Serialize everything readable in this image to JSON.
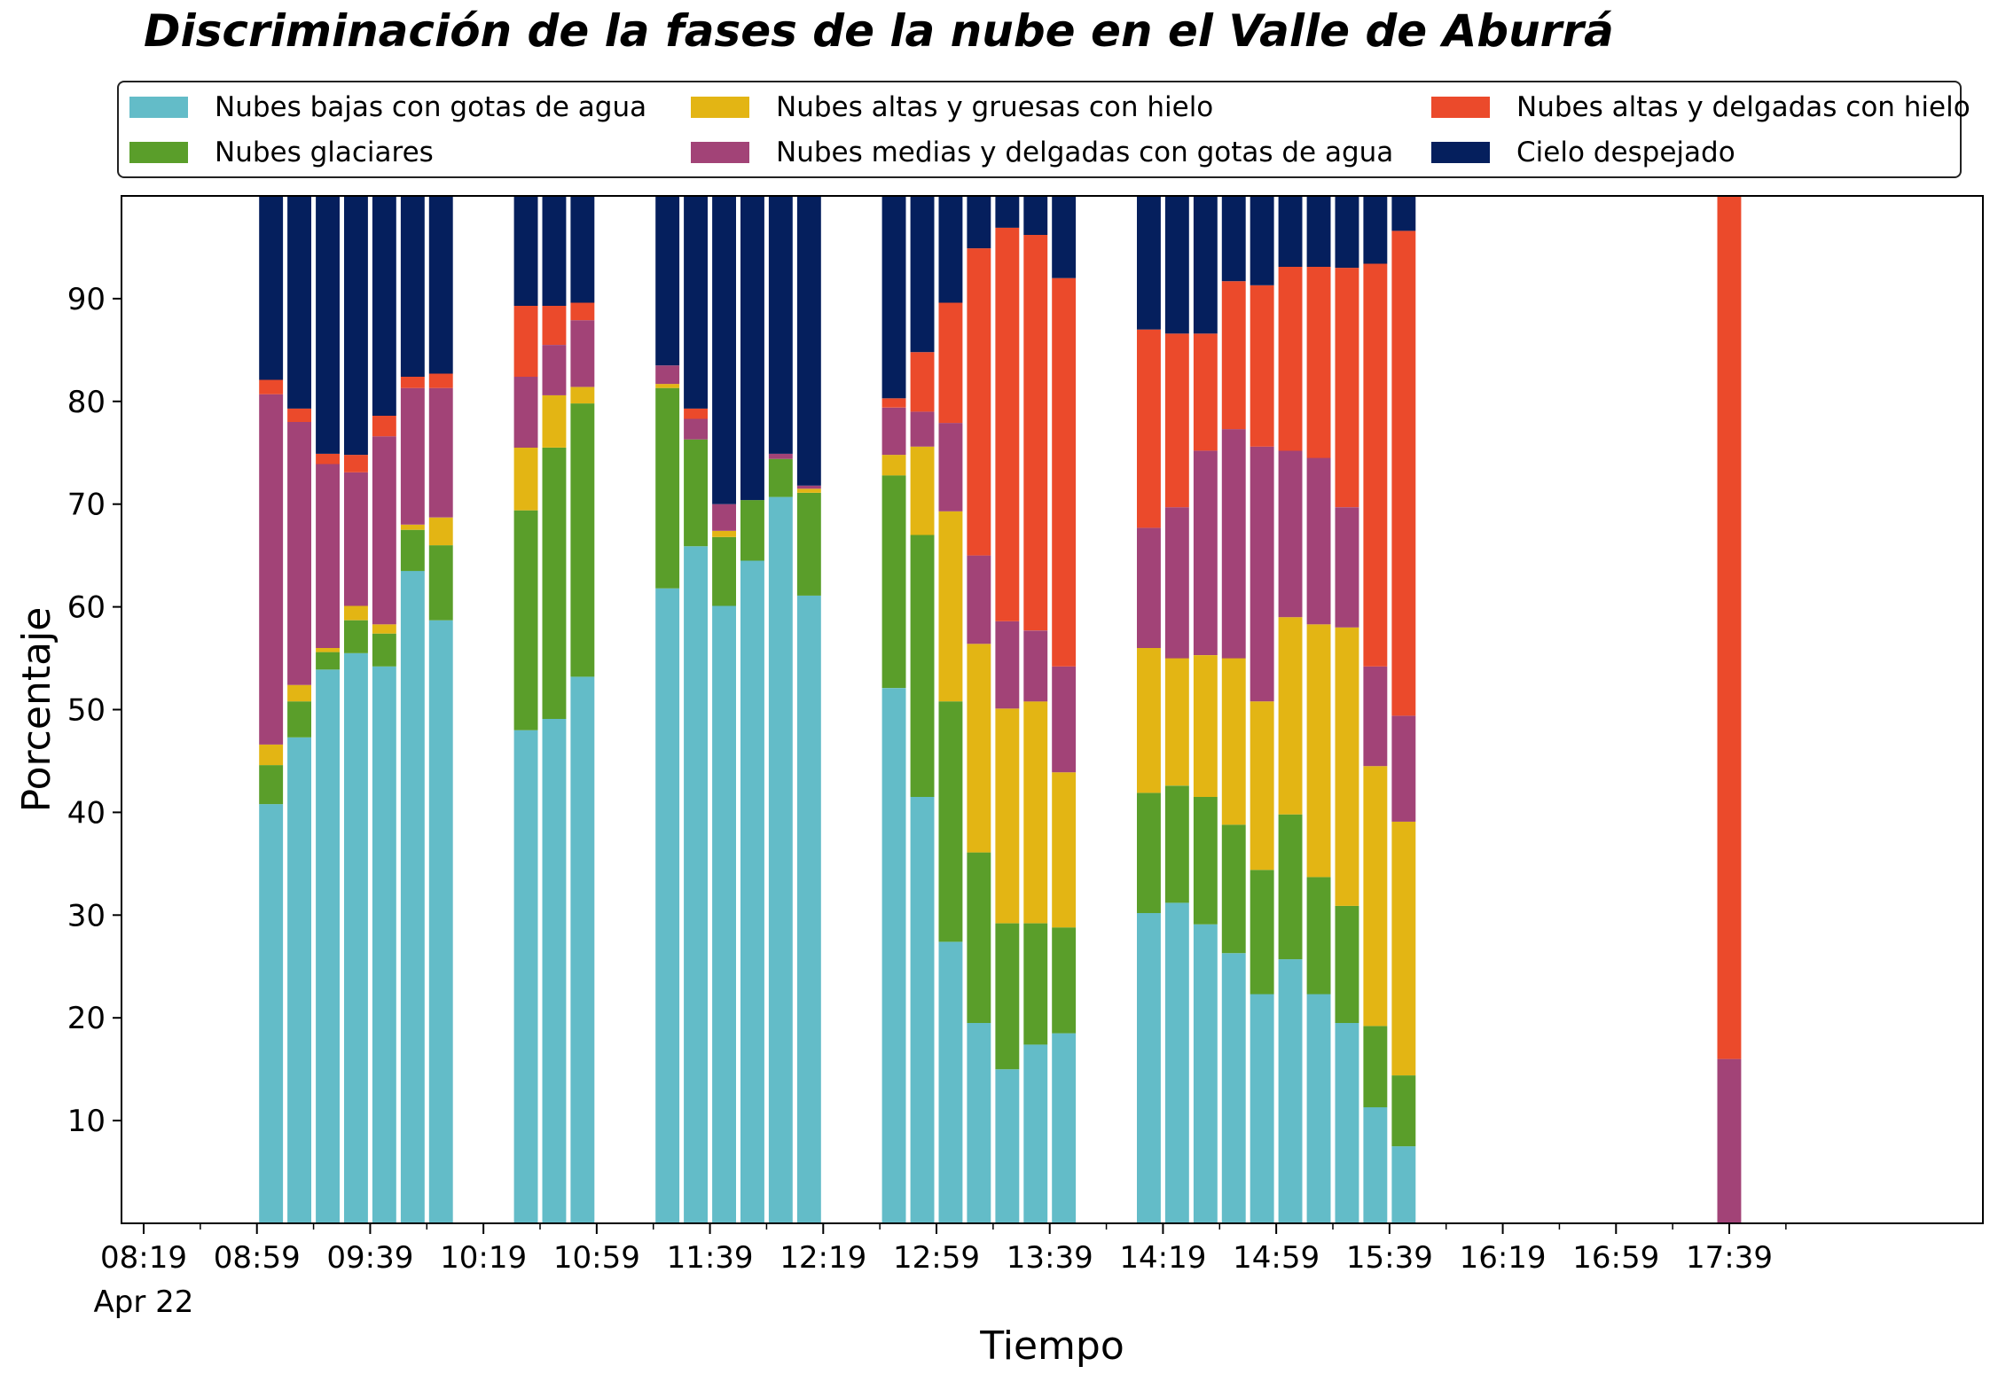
{
  "chart_data": {
    "type": "bar",
    "stacked": true,
    "title": "Discriminación de la fases de la nube en el Valle de Aburrá",
    "xlabel": "Tiempo",
    "ylabel": "Porcentaje",
    "ylim": [
      0,
      100
    ],
    "y_ticks": [
      "10",
      "20",
      "30",
      "40",
      "50",
      "60",
      "70",
      "80",
      "90"
    ],
    "x_date_label": "Apr 22",
    "x_ticks": [
      "08:19",
      "08:59",
      "09:39",
      "10:19",
      "10:59",
      "11:39",
      "12:19",
      "12:59",
      "13:39",
      "14:19",
      "14:59",
      "15:39",
      "16:19",
      "16:59",
      "17:39"
    ],
    "legend_position": "top",
    "grid": false,
    "series": [
      {
        "name": "Nubes bajas con gotas de agua",
        "color": "#63BCC8"
      },
      {
        "name": "Nubes glaciares",
        "color": "#5A9E2A"
      },
      {
        "name": "Nubes altas y gruesas con hielo",
        "color": "#E3B514"
      },
      {
        "name": "Nubes medias y delgadas con gotas de agua",
        "color": "#A24377"
      },
      {
        "name": "Nubes altas y delgadas con hielo",
        "color": "#EB4A2B"
      },
      {
        "name": "Cielo despejado",
        "color": "#051F5D"
      }
    ],
    "bars": [
      {
        "time": "09:04",
        "values": [
          40.8,
          3.8,
          2.0,
          34.1,
          1.4,
          17.9
        ]
      },
      {
        "time": "09:14",
        "values": [
          47.3,
          3.5,
          1.6,
          25.6,
          1.3,
          20.7
        ]
      },
      {
        "time": "09:24",
        "values": [
          53.9,
          1.7,
          0.4,
          17.9,
          1.0,
          25.1
        ]
      },
      {
        "time": "09:34",
        "values": [
          55.5,
          3.2,
          1.4,
          13.0,
          1.7,
          25.2
        ]
      },
      {
        "time": "09:44",
        "values": [
          54.2,
          3.2,
          0.9,
          18.3,
          2.0,
          21.4
        ]
      },
      {
        "time": "09:54",
        "values": [
          63.5,
          4.0,
          0.5,
          13.3,
          1.1,
          17.6
        ]
      },
      {
        "time": "10:04",
        "values": [
          58.7,
          7.3,
          2.7,
          12.6,
          1.4,
          17.3
        ]
      },
      {
        "time": "10:34",
        "values": [
          48.0,
          21.4,
          6.1,
          6.9,
          6.9,
          10.7
        ]
      },
      {
        "time": "10:44",
        "values": [
          49.1,
          26.4,
          5.1,
          4.9,
          3.8,
          10.7
        ]
      },
      {
        "time": "10:54",
        "values": [
          53.2,
          26.6,
          1.6,
          6.5,
          1.7,
          10.4
        ]
      },
      {
        "time": "11:24",
        "values": [
          61.8,
          19.5,
          0.4,
          1.8,
          0.0,
          16.5
        ]
      },
      {
        "time": "11:34",
        "values": [
          65.9,
          10.4,
          0.0,
          2.0,
          1.0,
          20.7
        ]
      },
      {
        "time": "11:44",
        "values": [
          60.1,
          6.7,
          0.6,
          2.6,
          0.0,
          30.0
        ]
      },
      {
        "time": "11:54",
        "values": [
          64.5,
          5.9,
          0.0,
          0.0,
          0.0,
          29.6
        ]
      },
      {
        "time": "12:04",
        "values": [
          70.7,
          3.7,
          0.0,
          0.5,
          0.0,
          25.1
        ]
      },
      {
        "time": "12:14",
        "values": [
          61.1,
          10.0,
          0.4,
          0.3,
          0.0,
          28.2
        ]
      },
      {
        "time": "12:44",
        "values": [
          52.1,
          20.7,
          2.0,
          4.6,
          0.9,
          19.7
        ]
      },
      {
        "time": "12:54",
        "values": [
          41.5,
          25.5,
          8.6,
          3.4,
          5.8,
          15.2
        ]
      },
      {
        "time": "13:04",
        "values": [
          27.4,
          23.4,
          18.5,
          8.6,
          11.7,
          10.4
        ]
      },
      {
        "time": "13:14",
        "values": [
          19.5,
          16.6,
          20.3,
          8.6,
          29.9,
          5.1
        ]
      },
      {
        "time": "13:24",
        "values": [
          15.0,
          14.2,
          20.9,
          8.5,
          38.3,
          3.1
        ]
      },
      {
        "time": "13:34",
        "values": [
          17.4,
          11.8,
          21.6,
          6.9,
          38.5,
          3.8
        ]
      },
      {
        "time": "13:44",
        "values": [
          18.5,
          10.3,
          15.1,
          10.3,
          37.8,
          8.0
        ]
      },
      {
        "time": "14:14",
        "values": [
          30.2,
          11.7,
          14.1,
          11.7,
          19.3,
          13.0
        ]
      },
      {
        "time": "14:24",
        "values": [
          31.2,
          11.4,
          12.4,
          14.7,
          16.9,
          13.4
        ]
      },
      {
        "time": "14:34",
        "values": [
          29.1,
          12.4,
          13.8,
          19.9,
          11.4,
          13.4
        ]
      },
      {
        "time": "14:44",
        "values": [
          26.3,
          12.5,
          16.2,
          22.3,
          14.4,
          8.3
        ]
      },
      {
        "time": "14:54",
        "values": [
          22.3,
          12.1,
          16.4,
          24.8,
          15.7,
          8.7
        ]
      },
      {
        "time": "15:04",
        "values": [
          25.7,
          14.1,
          19.2,
          16.2,
          17.9,
          6.9
        ]
      },
      {
        "time": "15:14",
        "values": [
          22.3,
          11.4,
          24.6,
          16.2,
          18.6,
          6.9
        ]
      },
      {
        "time": "15:24",
        "values": [
          19.5,
          11.4,
          27.1,
          11.7,
          23.3,
          7.0
        ]
      },
      {
        "time": "15:34",
        "values": [
          11.3,
          7.9,
          25.3,
          9.7,
          39.2,
          6.6
        ]
      },
      {
        "time": "15:44",
        "values": [
          7.5,
          6.9,
          24.7,
          10.3,
          47.2,
          3.4
        ]
      },
      {
        "time": "17:39",
        "values": [
          0.0,
          0.0,
          0.0,
          16.0,
          84.0,
          0.0
        ]
      }
    ]
  }
}
